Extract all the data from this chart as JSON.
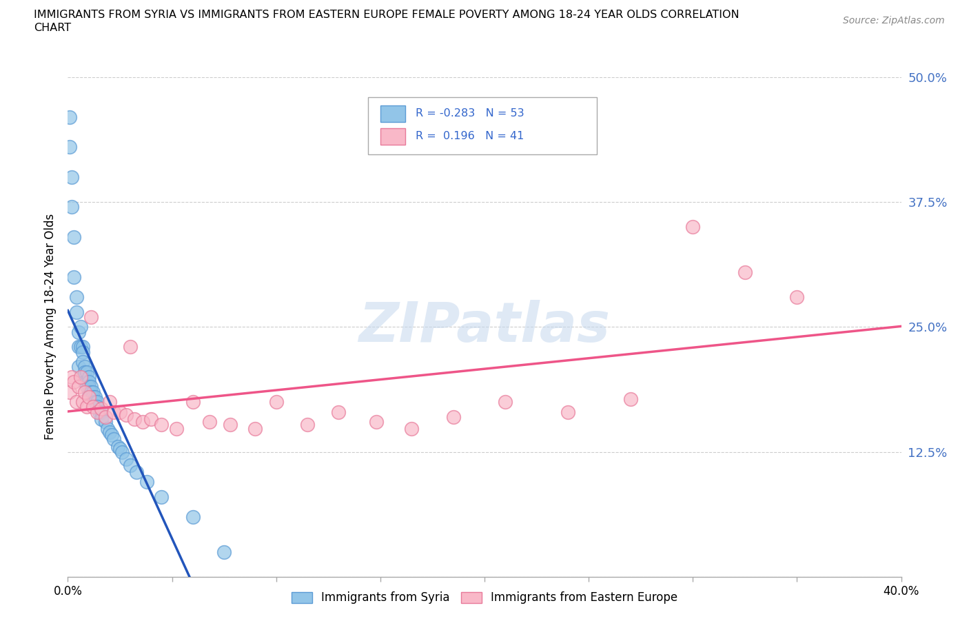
{
  "title_line1": "IMMIGRANTS FROM SYRIA VS IMMIGRANTS FROM EASTERN EUROPE FEMALE POVERTY AMONG 18-24 YEAR OLDS CORRELATION",
  "title_line2": "CHART",
  "source": "Source: ZipAtlas.com",
  "ylabel": "Female Poverty Among 18-24 Year Olds",
  "xlim": [
    0.0,
    0.4
  ],
  "ylim": [
    0.0,
    0.5
  ],
  "yticks": [
    0.0,
    0.125,
    0.25,
    0.375,
    0.5
  ],
  "yticklabels_right": [
    "",
    "12.5%",
    "25.0%",
    "37.5%",
    "50.0%"
  ],
  "color_syria": "#92C5E8",
  "color_syria_edge": "#5B9BD5",
  "color_eastern": "#F9B8C8",
  "color_eastern_edge": "#E87A9A",
  "trendline_syria_color": "#2255BB",
  "trendline_eastern_color": "#EE5588",
  "watermark": "ZIPatlas",
  "syria_x": [
    0.001,
    0.001,
    0.002,
    0.002,
    0.003,
    0.003,
    0.004,
    0.004,
    0.005,
    0.005,
    0.005,
    0.006,
    0.006,
    0.007,
    0.007,
    0.007,
    0.007,
    0.008,
    0.008,
    0.008,
    0.009,
    0.009,
    0.009,
    0.01,
    0.01,
    0.01,
    0.01,
    0.011,
    0.011,
    0.012,
    0.012,
    0.013,
    0.013,
    0.014,
    0.014,
    0.015,
    0.016,
    0.016,
    0.018,
    0.019,
    0.02,
    0.021,
    0.022,
    0.024,
    0.025,
    0.026,
    0.028,
    0.03,
    0.033,
    0.038,
    0.045,
    0.06,
    0.075
  ],
  "syria_y": [
    0.46,
    0.43,
    0.4,
    0.37,
    0.34,
    0.3,
    0.28,
    0.265,
    0.245,
    0.23,
    0.21,
    0.25,
    0.23,
    0.23,
    0.225,
    0.215,
    0.2,
    0.21,
    0.205,
    0.195,
    0.205,
    0.195,
    0.19,
    0.2,
    0.195,
    0.19,
    0.185,
    0.19,
    0.185,
    0.185,
    0.18,
    0.18,
    0.175,
    0.175,
    0.17,
    0.165,
    0.165,
    0.158,
    0.155,
    0.148,
    0.145,
    0.142,
    0.138,
    0.13,
    0.128,
    0.125,
    0.118,
    0.112,
    0.105,
    0.095,
    0.08,
    0.06,
    0.025
  ],
  "eastern_x": [
    0.001,
    0.002,
    0.003,
    0.004,
    0.005,
    0.006,
    0.007,
    0.008,
    0.009,
    0.01,
    0.011,
    0.012,
    0.014,
    0.016,
    0.018,
    0.02,
    0.022,
    0.025,
    0.028,
    0.032,
    0.036,
    0.04,
    0.045,
    0.052,
    0.06,
    0.068,
    0.078,
    0.09,
    0.1,
    0.115,
    0.13,
    0.148,
    0.165,
    0.185,
    0.21,
    0.24,
    0.27,
    0.3,
    0.325,
    0.35,
    0.03
  ],
  "eastern_y": [
    0.185,
    0.2,
    0.195,
    0.175,
    0.19,
    0.2,
    0.175,
    0.185,
    0.17,
    0.18,
    0.26,
    0.17,
    0.165,
    0.168,
    0.16,
    0.175,
    0.165,
    0.165,
    0.162,
    0.158,
    0.155,
    0.158,
    0.152,
    0.148,
    0.175,
    0.155,
    0.152,
    0.148,
    0.175,
    0.152,
    0.165,
    0.155,
    0.148,
    0.16,
    0.175,
    0.165,
    0.178,
    0.35,
    0.305,
    0.28,
    0.23
  ],
  "xtick_positions": [
    0.0,
    0.05,
    0.1,
    0.15,
    0.2,
    0.25,
    0.3,
    0.35,
    0.4
  ],
  "xtick_labels": [
    "0.0%",
    "",
    "",
    "",
    "",
    "",
    "",
    "",
    "40.0%"
  ]
}
